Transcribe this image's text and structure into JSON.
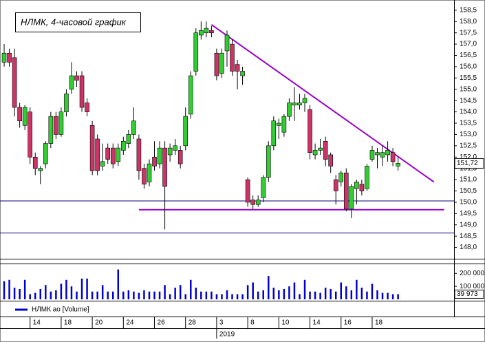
{
  "chart_data": [
    {
      "type": "candlestick",
      "title": "НЛМК, 4-часовой график",
      "up_color": "#33cc33",
      "down_color": "#cc3366",
      "xlim": [
        -0.8,
        86.8
      ],
      "ylim": [
        147.5,
        158.8
      ],
      "yticks": [
        {
          "value": 148,
          "label": "148,0"
        },
        {
          "value": 148.5,
          "label": "148,5"
        },
        {
          "value": 149,
          "label": "149,0"
        },
        {
          "value": 149.5,
          "label": "149,5"
        },
        {
          "value": 150,
          "label": "150,0"
        },
        {
          "value": 150.5,
          "label": "150,5"
        },
        {
          "value": 151,
          "label": "151,0"
        },
        {
          "value": 151.5,
          "label": "151,5"
        },
        {
          "value": 152,
          "label": "152,0"
        },
        {
          "value": 152.5,
          "label": "152,5"
        },
        {
          "value": 153,
          "label": "153,0"
        },
        {
          "value": 153.5,
          "label": "153,5"
        },
        {
          "value": 154,
          "label": "154,0"
        },
        {
          "value": 154.5,
          "label": "154,5"
        },
        {
          "value": 155,
          "label": "155,0"
        },
        {
          "value": 155.5,
          "label": "155,5"
        },
        {
          "value": 156,
          "label": "156,0"
        },
        {
          "value": 156.5,
          "label": "156,5"
        },
        {
          "value": 157,
          "label": "157,0"
        },
        {
          "value": 157.5,
          "label": "157,5"
        },
        {
          "value": 158,
          "label": "158,0"
        },
        {
          "value": 158.5,
          "label": "158,5"
        }
      ],
      "xticks": [
        {
          "value": 5,
          "label": "14"
        },
        {
          "value": 11,
          "label": "18"
        },
        {
          "value": 17,
          "label": "20"
        },
        {
          "value": 23,
          "label": "24"
        },
        {
          "value": 29,
          "label": "26"
        },
        {
          "value": 35,
          "label": "28"
        },
        {
          "value": 41,
          "label": "3"
        },
        {
          "value": 47,
          "label": "8"
        },
        {
          "value": 53,
          "label": "10"
        },
        {
          "value": 59,
          "label": "14"
        },
        {
          "value": 65,
          "label": "16"
        },
        {
          "value": 71,
          "label": "18"
        }
      ],
      "year_tick": {
        "value": 41,
        "label": "2019"
      },
      "last_label": {
        "value": 151.72,
        "label": "151,72"
      },
      "open": [
        156.2,
        156.6,
        156.4,
        154.2,
        153.4,
        154.0,
        152.0,
        151.4,
        151.7,
        152.6,
        153.8,
        153.0,
        154.0,
        155.0,
        155.6,
        155.6,
        154.4,
        153.4,
        152.8,
        151.6,
        152.4,
        152.4,
        151.8,
        152.3,
        152.6,
        153.0,
        152.8,
        151.5,
        150.9,
        152.0,
        151.7,
        152.4,
        152.1,
        152.3,
        152.3,
        152.5,
        153.9,
        155.8,
        157.4,
        157.5,
        157.6,
        156.6,
        155.7,
        156.7,
        157.0,
        156.1,
        155.6,
        151.0,
        150.1,
        149.9,
        150.2,
        151.1,
        152.5,
        153.4,
        153.1,
        153.8,
        154.3,
        154.3,
        154.4,
        154.1,
        152.1,
        152.3,
        152.7,
        152.1,
        151.0,
        150.9,
        151.3,
        149.7,
        150.6,
        150.8,
        150.6,
        151.9,
        152.1,
        152.0,
        152.1,
        152.2,
        151.6
      ],
      "high": [
        157.0,
        156.8,
        156.8,
        154.4,
        154.3,
        154.2,
        152.2,
        151.6,
        152.7,
        154.0,
        154.0,
        154.2,
        155.0,
        156.2,
        155.8,
        155.8,
        154.6,
        153.6,
        153.0,
        152.6,
        152.6,
        152.6,
        152.6,
        152.9,
        153.2,
        154.2,
        153.0,
        151.7,
        151.9,
        152.7,
        152.7,
        152.7,
        152.6,
        152.8,
        152.5,
        154.2,
        155.8,
        157.7,
        158.0,
        158.0,
        157.8,
        156.8,
        156.8,
        157.6,
        157.2,
        156.3,
        156.0,
        151.1,
        150.3,
        150.3,
        151.2,
        152.7,
        153.8,
        153.7,
        153.9,
        154.6,
        155.1,
        154.8,
        154.8,
        154.3,
        152.6,
        152.8,
        152.9,
        152.2,
        151.2,
        151.4,
        151.5,
        150.8,
        151.0,
        151.0,
        151.7,
        152.5,
        152.4,
        152.5,
        152.7,
        152.4,
        152.0
      ],
      "low": [
        156.0,
        156.0,
        153.8,
        153.3,
        153.2,
        151.7,
        151.2,
        150.8,
        151.5,
        152.4,
        152.8,
        152.9,
        153.8,
        154.8,
        155.1,
        154.0,
        153.8,
        151.2,
        151.2,
        151.4,
        151.7,
        151.5,
        151.6,
        152.1,
        152.4,
        152.8,
        151.0,
        150.6,
        150.7,
        151.4,
        151.5,
        148.8,
        151.8,
        152.1,
        151.5,
        152.3,
        153.7,
        155.6,
        157.2,
        157.3,
        157.3,
        155.4,
        155.5,
        156.0,
        155.6,
        155.0,
        155.2,
        149.8,
        149.7,
        149.8,
        150.0,
        150.9,
        152.3,
        152.8,
        152.9,
        153.6,
        153.6,
        154.1,
        154.0,
        151.9,
        151.9,
        152.1,
        151.6,
        151.3,
        149.9,
        150.7,
        149.6,
        149.3,
        149.9,
        150.3,
        150.5,
        151.8,
        151.5,
        151.6,
        151.8,
        151.6,
        151.4
      ],
      "close": [
        156.6,
        156.2,
        154.2,
        153.6,
        154.2,
        152.0,
        151.5,
        151.5,
        152.6,
        153.8,
        153.0,
        154.0,
        154.8,
        155.6,
        155.4,
        154.2,
        154.0,
        151.4,
        151.4,
        151.8,
        151.9,
        151.7,
        152.4,
        152.7,
        153.0,
        153.6,
        151.4,
        150.8,
        151.7,
        151.6,
        152.4,
        150.7,
        152.4,
        152.5,
        151.7,
        153.8,
        155.6,
        157.5,
        157.6,
        157.7,
        157.5,
        155.6,
        156.6,
        157.4,
        155.8,
        155.8,
        155.8,
        150.0,
        149.9,
        150.1,
        151.1,
        152.5,
        153.6,
        153.5,
        153.8,
        154.4,
        154.4,
        154.4,
        154.6,
        152.2,
        152.3,
        152.4,
        151.9,
        151.6,
        150.5,
        151.3,
        149.7,
        150.7,
        150.9,
        150.5,
        151.6,
        152.3,
        152.2,
        152.2,
        152.3,
        151.8,
        151.72
      ],
      "lines": [
        {
          "color": "#9900cc",
          "x": [
            40,
            82.9
          ],
          "y": [
            157.86,
            150.9
          ]
        },
        {
          "color": "#9900cc",
          "x": [
            26,
            84.9
          ],
          "y": [
            149.67,
            149.67
          ]
        },
        {
          "color": "#000080",
          "x": [
            -0.8,
            86.8
          ],
          "y": [
            150.06,
            150.06
          ]
        },
        {
          "color": "#000080",
          "x": [
            -0.8,
            86.8
          ],
          "y": [
            148.64,
            148.64
          ]
        }
      ]
    },
    {
      "type": "volume",
      "color": "#0000cc",
      "legend": "НЛМК ао [Volume]",
      "ylim": [
        0,
        260000
      ],
      "yticks": [
        {
          "value": 200000,
          "label": "200 000"
        },
        {
          "value": 100000,
          "label": "100 000"
        }
      ],
      "last_label": {
        "value": 39973,
        "label": "39 973"
      },
      "values": [
        140000,
        150000,
        90000,
        80000,
        150000,
        40000,
        50000,
        80000,
        110000,
        60000,
        70000,
        120000,
        150000,
        100000,
        60000,
        160000,
        160000,
        60000,
        60000,
        110000,
        60000,
        60000,
        230000,
        60000,
        70000,
        60000,
        50000,
        70000,
        60000,
        60000,
        60000,
        110000,
        40000,
        90000,
        110000,
        40000,
        150000,
        90000,
        60000,
        60000,
        60000,
        40000,
        40000,
        70000,
        40000,
        40000,
        40000,
        110000,
        130000,
        60000,
        70000,
        180000,
        90000,
        70000,
        80000,
        100000,
        130000,
        40000,
        150000,
        60000,
        60000,
        50000,
        90000,
        80000,
        60000,
        130000,
        100000,
        70000,
        150000,
        90000,
        60000,
        120000,
        70000,
        50000,
        50000,
        40000,
        39973
      ]
    }
  ]
}
